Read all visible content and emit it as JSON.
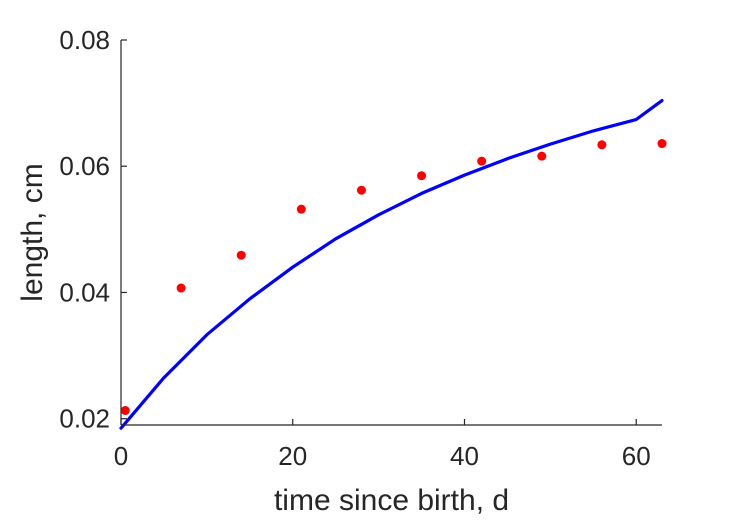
{
  "chart_data": {
    "type": "line",
    "title": "",
    "xlabel": "time since birth, d",
    "ylabel": "length, cm",
    "xlim": [
      0,
      63
    ],
    "ylim": [
      0.019,
      0.08
    ],
    "xticks": [
      0,
      20,
      40,
      60
    ],
    "yticks": [
      0.02,
      0.04,
      0.06,
      0.08
    ],
    "xtick_labels": [
      "0",
      "20",
      "40",
      "60"
    ],
    "ytick_labels": [
      "0.02",
      "0.04",
      "0.06",
      "0.08"
    ],
    "grid": false,
    "legend": "none",
    "box": "left-and-bottom axes only",
    "series": [
      {
        "kind": "line",
        "color": "#0000ff",
        "x": [
          0,
          5,
          10,
          15,
          20,
          25,
          30,
          35,
          40,
          45,
          50,
          55,
          60,
          63
        ],
        "y": [
          0.0185,
          0.0265,
          0.0333,
          0.039,
          0.044,
          0.0485,
          0.0523,
          0.0557,
          0.0586,
          0.0612,
          0.0635,
          0.0656,
          0.0674,
          0.0704
        ]
      },
      {
        "kind": "scatter",
        "color": "#ff0000",
        "x": [
          0.5,
          7,
          14,
          21,
          28,
          35,
          42,
          49,
          56,
          63
        ],
        "y": [
          0.0213,
          0.0407,
          0.0459,
          0.0532,
          0.0562,
          0.0585,
          0.0608,
          0.0616,
          0.0634,
          0.0636
        ]
      }
    ]
  }
}
